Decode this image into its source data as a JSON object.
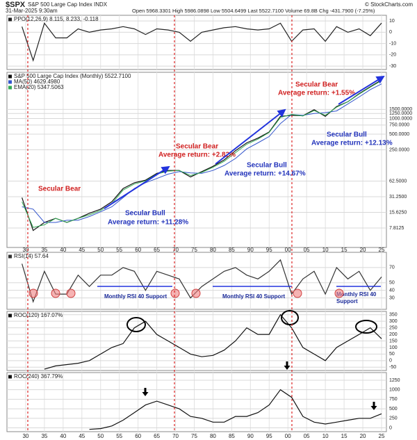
{
  "header": {
    "symbol": "$SPX",
    "name": "S&P 500 Large Cap Index INDX",
    "date": "31-Mar-2025 9:30am",
    "quote": "Open 5968.3301 High 5986.0898 Low 5504.6499 Last 5522.7100 Volume 69.8B Chg -431.7900 (-7.25%)",
    "credit": "© StockCharts.com"
  },
  "chart_data": [
    {
      "type": "line",
      "x": [
        1929,
        1932,
        1935,
        1938,
        1941,
        1944,
        1947,
        1950,
        1953,
        1956,
        1959,
        1962,
        1965,
        1968,
        1971,
        1974,
        1977,
        1980,
        1983,
        1986,
        1989,
        1992,
        1995,
        1998,
        2001,
        2004,
        2007,
        2010,
        2013,
        2016,
        2019,
        2022,
        2025
      ],
      "xlim": [
        1925,
        2026.3
      ],
      "ylim": [
        -33,
        15
      ],
      "yticks": [
        10,
        0,
        -10,
        -20,
        -30
      ],
      "grid": true,
      "series": [
        {
          "name": "PPO(12,26,9) 8.115, 8.233, -0.118",
          "color": "#222222",
          "values": [
            5,
            -25,
            8,
            -5,
            -5,
            3,
            0,
            2,
            3,
            5,
            3,
            -2,
            3,
            2,
            0,
            -8,
            0,
            2,
            4,
            5,
            3,
            2,
            3,
            8,
            -8,
            2,
            3,
            -8,
            5,
            0,
            3,
            -3,
            8.115
          ]
        }
      ]
    },
    {
      "type": "line",
      "log": true,
      "x": [
        1929,
        1932,
        1935,
        1938,
        1941,
        1944,
        1947,
        1950,
        1953,
        1956,
        1959,
        1962,
        1965,
        1968,
        1971,
        1974,
        1977,
        1980,
        1983,
        1986,
        1989,
        1992,
        1995,
        1998,
        2001,
        2004,
        2007,
        2010,
        2013,
        2016,
        2019,
        2022,
        2025
      ],
      "xlim": [
        1925,
        2026.3
      ],
      "ylim": [
        3.3,
        7750
      ],
      "xticks": [
        {
          "value": 1930,
          "label": "30"
        },
        {
          "value": 1935,
          "label": "35"
        },
        {
          "value": 1940,
          "label": "40"
        },
        {
          "value": 1945,
          "label": "45"
        },
        {
          "value": 1950,
          "label": "50"
        },
        {
          "value": 1955,
          "label": "55"
        },
        {
          "value": 1960,
          "label": "60"
        },
        {
          "value": 1965,
          "label": "65"
        },
        {
          "value": 1970,
          "label": "70"
        },
        {
          "value": 1975,
          "label": "75"
        },
        {
          "value": 1980,
          "label": "80"
        },
        {
          "value": 1985,
          "label": "85"
        },
        {
          "value": 1990,
          "label": "90"
        },
        {
          "value": 1995,
          "label": "95"
        },
        {
          "value": 2000,
          "label": "00"
        },
        {
          "value": 2005,
          "label": "05"
        },
        {
          "value": 2010,
          "label": "10"
        },
        {
          "value": 2015,
          "label": "15"
        },
        {
          "value": 2020,
          "label": "20"
        },
        {
          "value": 2025,
          "label": "25"
        }
      ],
      "yticks": [
        {
          "value": 7.8125,
          "label": "7.8125"
        },
        {
          "value": 15.625,
          "label": "15.6250"
        },
        {
          "value": 31.25,
          "label": "31.2500"
        },
        {
          "value": 62.5,
          "label": "62.5000"
        },
        {
          "value": 250,
          "label": "250.0000"
        },
        {
          "value": 500,
          "label": "500.0000"
        },
        {
          "value": 750,
          "label": "750.0000"
        },
        {
          "value": 1000,
          "label": "1000.0000"
        },
        {
          "value": 1250,
          "label": "1250.0000"
        },
        {
          "value": 1500,
          "label": "1500.0000"
        }
      ],
      "grid": true,
      "series": [
        {
          "name": "S&P 500 Large Cap Index (Monthly) 5522.7100",
          "color": "#111111",
          "values": [
            30,
            7,
            10,
            12,
            10,
            12,
            15,
            18,
            25,
            45,
            58,
            65,
            88,
            100,
            100,
            75,
            95,
            120,
            160,
            240,
            340,
            420,
            550,
            1100,
            1150,
            1130,
            1480,
            1100,
            1700,
            2100,
            3000,
            4100,
            5522.71
          ]
        },
        {
          "name": "MA(50) 4629.4980",
          "color": "#3355cc",
          "values": [
            20,
            18,
            10,
            10,
            11,
            11,
            13,
            16,
            20,
            30,
            45,
            58,
            70,
            85,
            95,
            90,
            88,
            100,
            125,
            170,
            260,
            340,
            450,
            800,
            1200,
            1150,
            1250,
            1300,
            1400,
            1900,
            2600,
            3600,
            4629.498
          ]
        },
        {
          "name": "EMA(20) 5347.5063",
          "color": "#33aa55",
          "values": [
            25,
            8,
            9,
            12,
            10,
            12,
            14,
            17,
            23,
            42,
            55,
            63,
            85,
            97,
            100,
            80,
            92,
            115,
            150,
            220,
            320,
            400,
            540,
            1050,
            1200,
            1120,
            1420,
            1150,
            1650,
            2100,
            2950,
            4000,
            5347.5063
          ]
        }
      ],
      "annotations": [
        "Secular Bear",
        "Secular Bull",
        "Average return: +11.28%",
        "Secular Bear",
        "Average return: +2.82%",
        "Secular Bull",
        "Average return: +14.67%",
        "Secular Bear",
        "Average return: +1.55%",
        "Secular Bull",
        "Average return: +12.13%"
      ]
    },
    {
      "type": "line",
      "x": [
        1929,
        1932,
        1935,
        1938,
        1941,
        1944,
        1947,
        1950,
        1953,
        1956,
        1959,
        1962,
        1965,
        1968,
        1971,
        1974,
        1977,
        1980,
        1983,
        1986,
        1989,
        1992,
        1995,
        1998,
        2001,
        2004,
        2007,
        2010,
        2013,
        2016,
        2019,
        2022,
        2025
      ],
      "xlim": [
        1925,
        2026.3
      ],
      "ylim": [
        15,
        90
      ],
      "yticks": [
        30,
        40,
        50,
        70
      ],
      "grid": true,
      "series": [
        {
          "name": "RSI(14) 57.64",
          "color": "#333333",
          "values": [
            75,
            25,
            65,
            35,
            35,
            60,
            45,
            60,
            60,
            70,
            65,
            40,
            65,
            60,
            55,
            30,
            45,
            55,
            65,
            70,
            60,
            55,
            65,
            80,
            35,
            55,
            65,
            35,
            70,
            55,
            65,
            40,
            57.64
          ]
        }
      ],
      "annotations": [
        "Monthly RSI 40 Support",
        "Monthly RSI 40 Support",
        "Monthly RSI 40",
        "Support"
      ]
    },
    {
      "type": "line",
      "x": [
        1929,
        1932,
        1935,
        1938,
        1941,
        1944,
        1947,
        1950,
        1953,
        1956,
        1959,
        1962,
        1965,
        1968,
        1971,
        1974,
        1977,
        1980,
        1983,
        1986,
        1989,
        1992,
        1995,
        1998,
        2001,
        2004,
        2007,
        2010,
        2013,
        2016,
        2019,
        2022,
        2025
      ],
      "xlim": [
        1925,
        2026.3
      ],
      "ylim": [
        -75,
        375
      ],
      "yticks": [
        350,
        300,
        250,
        200,
        150,
        100,
        50,
        0,
        -50
      ],
      "grid": true,
      "series": [
        {
          "name": "ROC(120) 167.07%",
          "color": "#111111",
          "values": [
            null,
            null,
            -65,
            -40,
            -30,
            -20,
            0,
            50,
            100,
            130,
            250,
            300,
            200,
            150,
            100,
            50,
            30,
            40,
            80,
            150,
            250,
            200,
            200,
            350,
            250,
            100,
            50,
            0,
            100,
            150,
            200,
            250,
            167.07
          ]
        }
      ]
    },
    {
      "type": "line",
      "x": [
        1929,
        1932,
        1935,
        1938,
        1941,
        1944,
        1947,
        1950,
        1953,
        1956,
        1959,
        1962,
        1965,
        1968,
        1971,
        1974,
        1977,
        1980,
        1983,
        1986,
        1989,
        1992,
        1995,
        1998,
        2001,
        2004,
        2007,
        2010,
        2013,
        2016,
        2019,
        2022,
        2025
      ],
      "xlim": [
        1925,
        2026.3
      ],
      "ylim": [
        -100,
        1450
      ],
      "yticks": [
        1250,
        1000,
        750,
        500,
        250,
        0
      ],
      "grid": true,
      "xticks": [
        {
          "value": 1930,
          "label": "30"
        },
        {
          "value": 1935,
          "label": "35"
        },
        {
          "value": 1940,
          "label": "40"
        },
        {
          "value": 1945,
          "label": "45"
        },
        {
          "value": 1950,
          "label": "50"
        },
        {
          "value": 1955,
          "label": "55"
        },
        {
          "value": 1960,
          "label": "60"
        },
        {
          "value": 1965,
          "label": "65"
        },
        {
          "value": 1970,
          "label": "70"
        },
        {
          "value": 1975,
          "label": "75"
        },
        {
          "value": 1980,
          "label": "80"
        },
        {
          "value": 1985,
          "label": "85"
        },
        {
          "value": 1990,
          "label": "90"
        },
        {
          "value": 1995,
          "label": "95"
        },
        {
          "value": 2000,
          "label": "00"
        },
        {
          "value": 2005,
          "label": "05"
        },
        {
          "value": 2010,
          "label": "10"
        },
        {
          "value": 2015,
          "label": "15"
        },
        {
          "value": 2020,
          "label": "20"
        },
        {
          "value": 2025,
          "label": "25"
        }
      ],
      "series": [
        {
          "name": "ROC(240) 367.79%",
          "color": "#111111",
          "values": [
            null,
            null,
            null,
            null,
            null,
            null,
            -40,
            -20,
            50,
            200,
            400,
            600,
            700,
            600,
            500,
            300,
            250,
            150,
            150,
            300,
            300,
            400,
            600,
            1000,
            800,
            300,
            150,
            100,
            150,
            200,
            250,
            250,
            367.79
          ]
        }
      ]
    }
  ]
}
